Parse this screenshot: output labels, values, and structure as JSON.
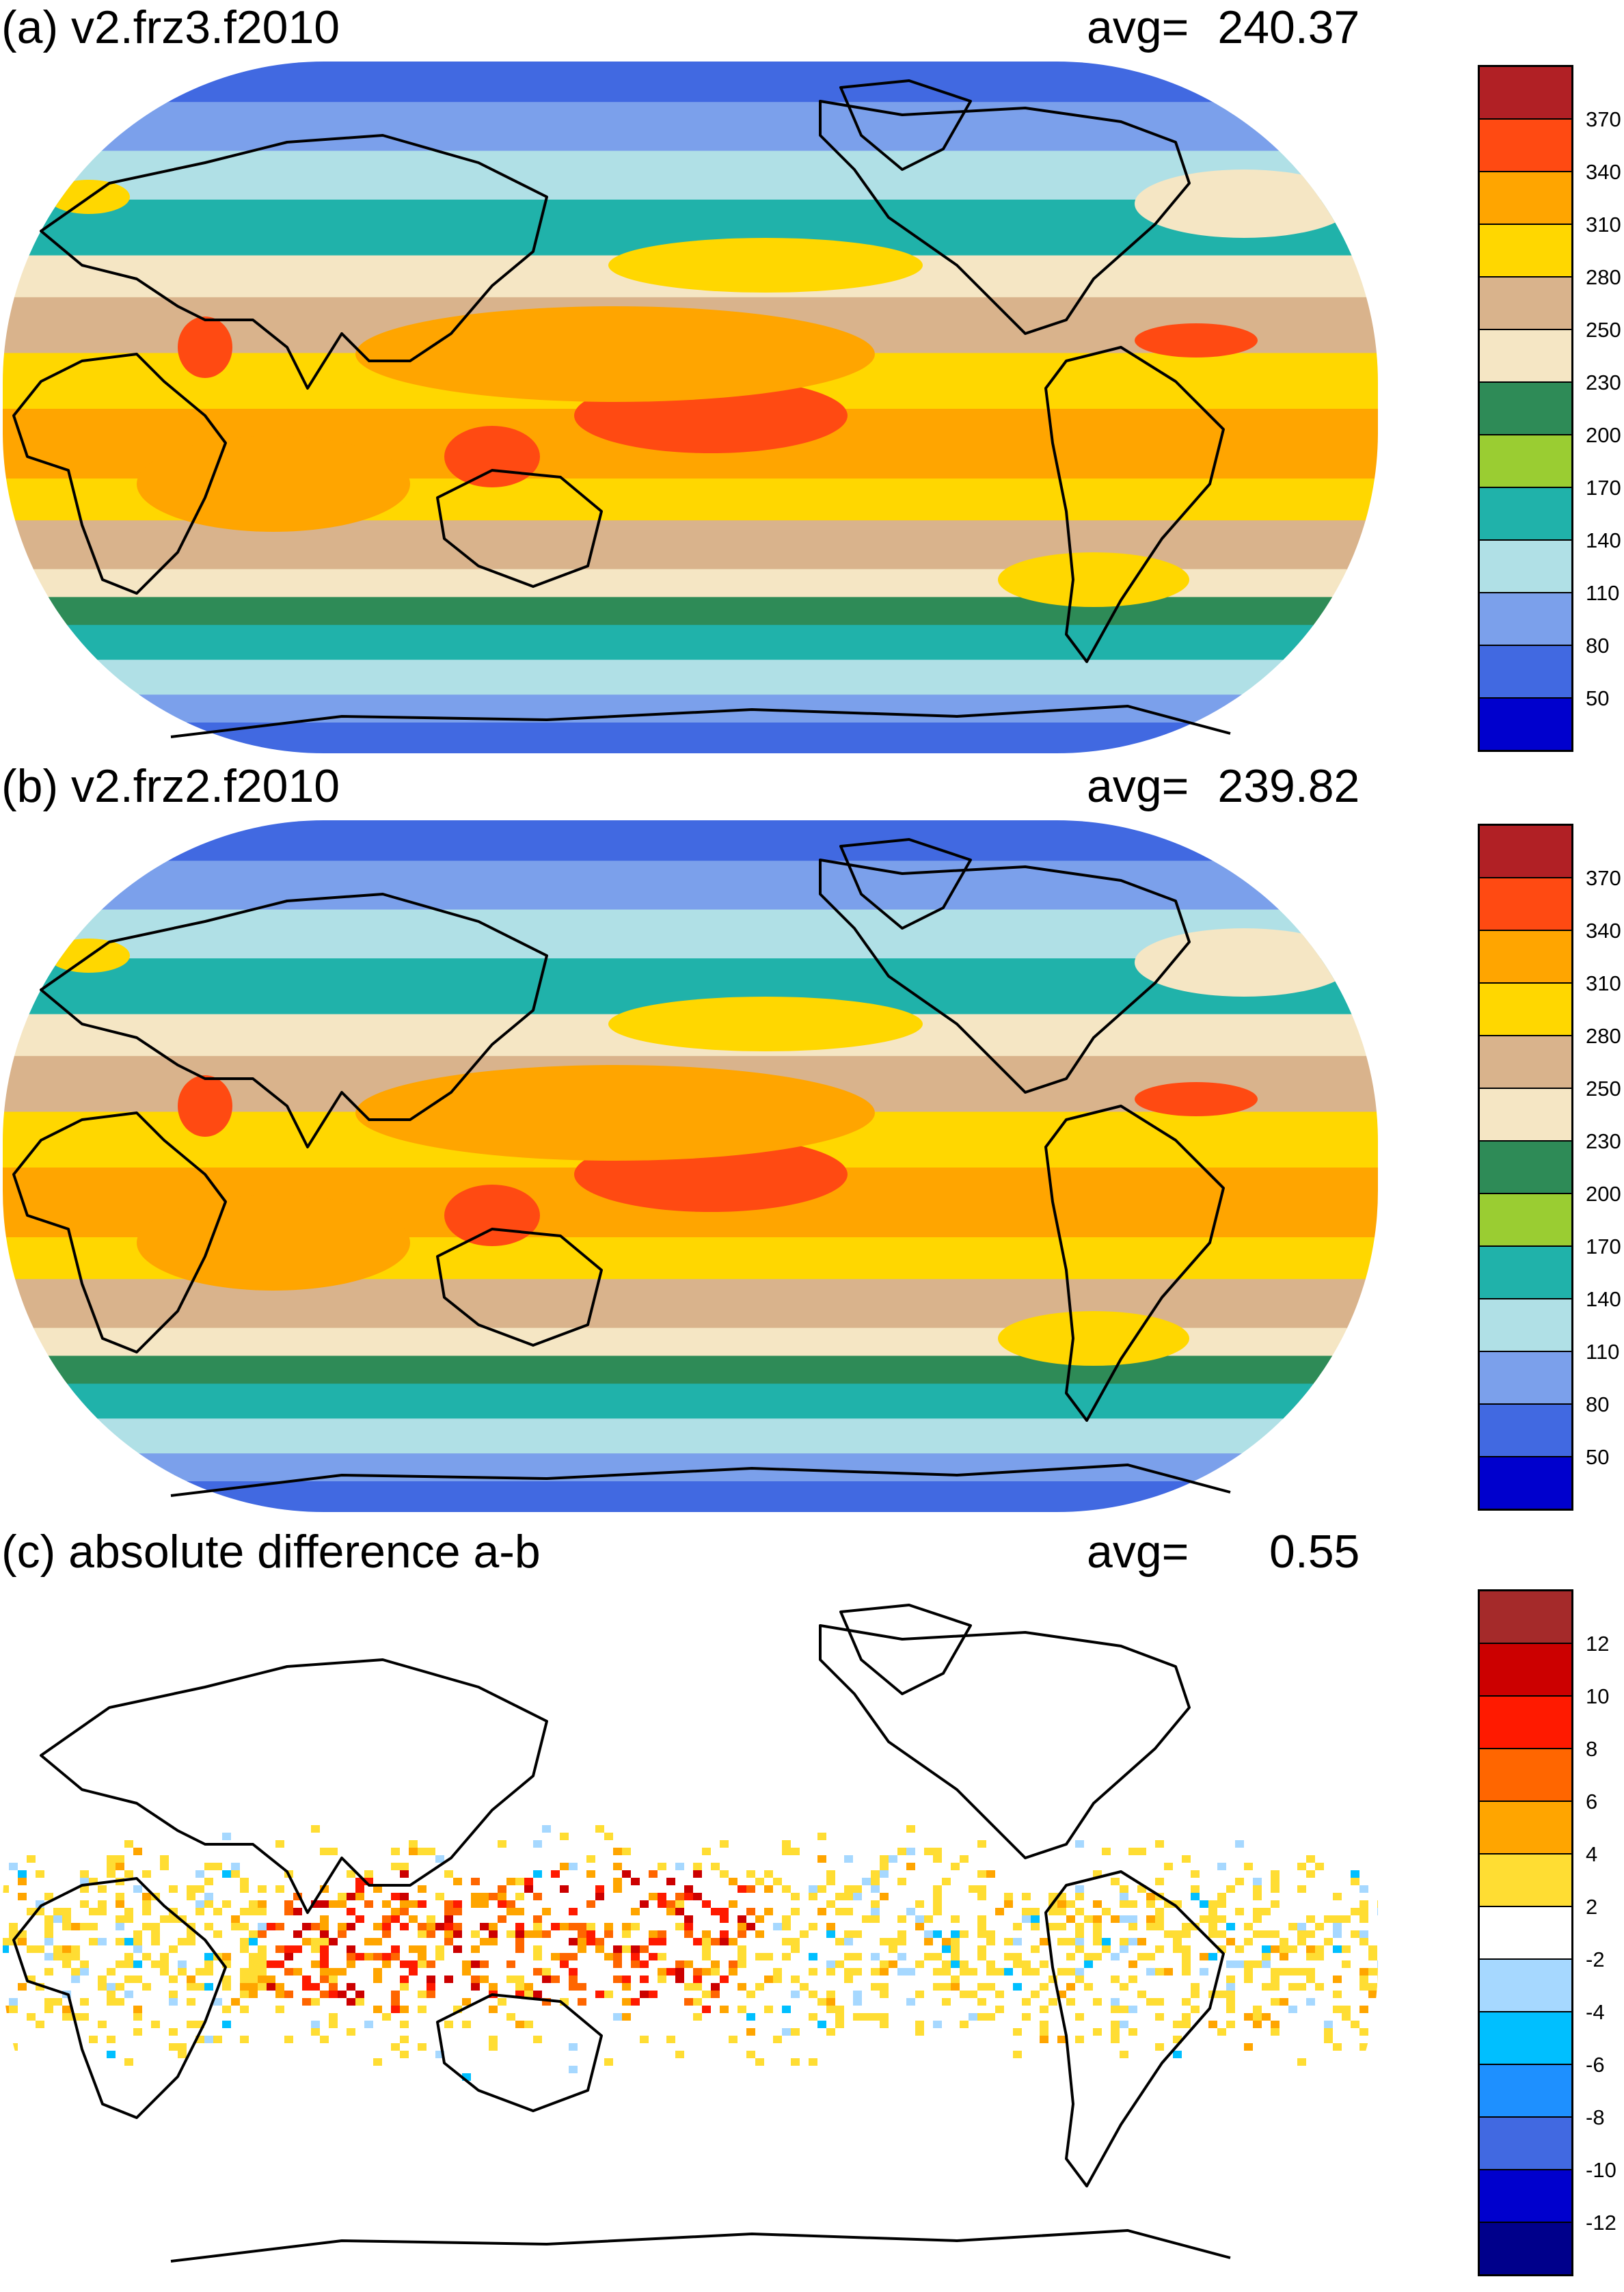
{
  "panels": [
    {
      "title": "(a) v2.frz3.f2010",
      "avg_label": "avg=",
      "avg_value": "240.37",
      "colors": [
        "#b12025",
        "#ff4a12",
        "#ffa500",
        "#ffd700",
        "#d9b38c",
        "#f5e6c4",
        "#2e8b57",
        "#9acd32",
        "#20b2aa",
        "#b0e0e6",
        "#7ba0eb",
        "#4169e1",
        "#0000cd"
      ],
      "ticks": [
        "370",
        "340",
        "310",
        "280",
        "250",
        "230",
        "200",
        "170",
        "140",
        "110",
        "80",
        "50"
      ]
    },
    {
      "title": "(b) v2.frz2.f2010",
      "avg_label": "avg=",
      "avg_value": "239.82",
      "colors": [
        "#b12025",
        "#ff4a12",
        "#ffa500",
        "#ffd700",
        "#d9b38c",
        "#f5e6c4",
        "#2e8b57",
        "#9acd32",
        "#20b2aa",
        "#b0e0e6",
        "#7ba0eb",
        "#4169e1",
        "#0000cd"
      ],
      "ticks": [
        "370",
        "340",
        "310",
        "280",
        "250",
        "230",
        "200",
        "170",
        "140",
        "110",
        "80",
        "50"
      ]
    },
    {
      "title": "(c) absolute difference a-b",
      "avg_label": "avg=",
      "avg_value": "0.55",
      "colors": [
        "#a52a2a",
        "#cc0000",
        "#ff1a00",
        "#ff6600",
        "#ffa500",
        "#ffdd33",
        "#ffffff",
        "#a6d8ff",
        "#00bfff",
        "#1e90ff",
        "#4169e1",
        "#0000cd",
        "#00008b"
      ],
      "ticks": [
        "12",
        "10",
        "8",
        "6",
        "4",
        "2",
        "-2",
        "-4",
        "-6",
        "-8",
        "-10",
        "-12"
      ]
    }
  ]
}
